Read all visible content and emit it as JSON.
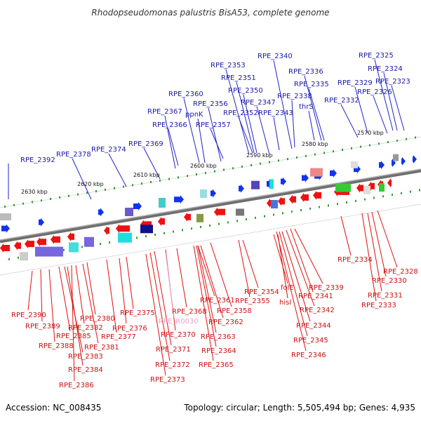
{
  "title": "Rhodopseudomonas palustris BisA53, complete genome",
  "footer": {
    "accession": "Accession: NC_008435",
    "topology": "Topology: circular; Length: 5,505,494 bp; Genes: 4,935"
  },
  "colors": {
    "forward_label": "#1a1aa6",
    "reverse_label": "#cc1111",
    "rna_label": "#e7a3c9",
    "backbone": "#7f7f7f",
    "forward_arrow": "#1133ee",
    "reverse_arrow": "#ee1111"
  },
  "kbp_marks": [
    "2630 kbp",
    "2620 kbp",
    "2610 kbp",
    "2600 kbp",
    "2590 kbp",
    "2580 kbp",
    "2570 kbp"
  ],
  "forward_genes": [
    "RPE_2392",
    "RPE_2378",
    "RPE_2374",
    "RPE_2369",
    "RPE_2367",
    "RPE_2366",
    "RPE_2360",
    "ppnK",
    "RPE_2356",
    "RPE_2357",
    "RPE_2353",
    "RPE_2351",
    "RPE_2350",
    "RPE_2352",
    "RPE_2347",
    "RPE_2343",
    "RPE_2340",
    "RPE_2338",
    "RPE_2336",
    "RPE_2335",
    "thrS",
    "RPE_2332",
    "RPE_2329",
    "RPE_2325",
    "RPE_2324",
    "RPE_2326",
    "RPE_2323"
  ],
  "reverse_genes": [
    "RPE_2390",
    "RPE_2389",
    "RPE_2388",
    "RPE_2385",
    "RPE_2383",
    "RPE_2384",
    "RPE_2386",
    "RPE_2382",
    "RPE_2381",
    "RPE_2380",
    "RPE_2377",
    "RPE_2376",
    "RPE_2375",
    "RPE_2368",
    "RPE_2370",
    "RPE_2371",
    "RPE_2372",
    "RPE_2373",
    "RPE_2361",
    "RPE_2362",
    "RPE_2363",
    "RPE_2364",
    "RPE_2365",
    "RPE_2358",
    "RPE_2354",
    "RPE_2355",
    "folE",
    "hisI",
    "RPE_2339",
    "RPE_2341",
    "RPE_2342",
    "RPE_2344",
    "RPE_2345",
    "RPE_2346",
    "RPE_2334",
    "RPE_2328",
    "RPE_2330",
    "RPE_2331",
    "RPE_2333"
  ],
  "rna_genes": [
    "RPE_R0030"
  ]
}
